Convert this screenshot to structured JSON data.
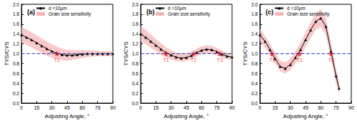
{
  "chart_data": [
    {
      "type": "line",
      "title": "(a)",
      "x_label": "Adjusting Angle, °",
      "y_label": "TYS/CYS",
      "xlim": [
        0,
        90
      ],
      "xticks": [
        0,
        15,
        30,
        45,
        60,
        75,
        90
      ],
      "ylim": [
        0,
        2
      ],
      "yticks": [
        {
          "value": 0,
          "label": "0.0"
        },
        {
          "value": 0.2,
          "label": "0.2"
        },
        {
          "value": 0.4,
          "label": "0.4"
        },
        {
          "value": 0.6,
          "label": "0.6"
        },
        {
          "value": 0.8,
          "label": "0.8"
        },
        {
          "value": 1,
          "label": "1.0"
        },
        {
          "value": 1.2,
          "label": "1.2"
        },
        {
          "value": 1.4,
          "label": "1.4"
        },
        {
          "value": 1.6,
          "label": "1.6"
        },
        {
          "value": 1.8,
          "label": "1.8"
        },
        {
          "value": 2,
          "label": "2.0"
        }
      ],
      "legend": "top",
      "series": [
        {
          "name": "d =10μm",
          "color": "#000000",
          "marker": "triangle",
          "x": [
            0,
            5,
            10,
            15,
            20,
            25,
            30,
            35,
            40,
            45,
            50,
            55,
            60,
            65,
            70,
            75,
            80,
            85,
            90
          ],
          "values": [
            1.38,
            1.33,
            1.28,
            1.22,
            1.16,
            1.1,
            1.05,
            1.01,
            0.98,
            0.97,
            0.97,
            0.98,
            0.99,
            1.0,
            1.0,
            1.0,
            1.0,
            1.0,
            1.0
          ]
        }
      ],
      "band": {
        "name": "Grain size sensitivity",
        "color": "#f7b3b3",
        "x": [
          0,
          5,
          10,
          15,
          20,
          25,
          30,
          35,
          40,
          45,
          50,
          55,
          60,
          65,
          70,
          75,
          80,
          85,
          90
        ],
        "lower": [
          1.22,
          1.18,
          1.13,
          1.07,
          1.01,
          0.96,
          0.92,
          0.89,
          0.87,
          0.86,
          0.87,
          0.89,
          0.91,
          0.93,
          0.94,
          0.95,
          0.95,
          0.95,
          0.95
        ],
        "upper": [
          1.55,
          1.49,
          1.43,
          1.37,
          1.31,
          1.25,
          1.19,
          1.14,
          1.1,
          1.08,
          1.07,
          1.07,
          1.07,
          1.07,
          1.06,
          1.06,
          1.05,
          1.05,
          1.05
        ]
      },
      "reference": {
        "value": 1,
        "color": "#1f3fbf",
        "line_style": "dashed"
      },
      "points": {
        "labels": [
          "T1"
        ],
        "x": [
          35
        ],
        "y": [
          1.0
        ],
        "color": "#ff0000",
        "marker": "star"
      }
    },
    {
      "type": "line",
      "title": "(b)",
      "x_label": "Adjusting Angle, °",
      "y_label": "TYS/CYS",
      "xlim": [
        0,
        90
      ],
      "xticks": [
        0,
        15,
        30,
        45,
        60,
        75,
        90
      ],
      "ylim": [
        0,
        2
      ],
      "yticks": [
        {
          "value": 0,
          "label": "0.0"
        },
        {
          "value": 0.2,
          "label": "0.2"
        },
        {
          "value": 0.4,
          "label": "0.4"
        },
        {
          "value": 0.6,
          "label": "0.6"
        },
        {
          "value": 0.8,
          "label": "0.8"
        },
        {
          "value": 1,
          "label": "1.0"
        },
        {
          "value": 1.2,
          "label": "1.2"
        },
        {
          "value": 1.4,
          "label": "1.4"
        },
        {
          "value": 1.6,
          "label": "1.6"
        },
        {
          "value": 1.8,
          "label": "1.8"
        },
        {
          "value": 2,
          "label": "2.0"
        }
      ],
      "legend": "top",
      "series": [
        {
          "name": "d =10μm",
          "color": "#000000",
          "marker": "triangle",
          "x": [
            0,
            5,
            10,
            15,
            20,
            25,
            30,
            35,
            40,
            45,
            50,
            55,
            60,
            65,
            70,
            75,
            80,
            85,
            90
          ],
          "values": [
            1.4,
            1.33,
            1.25,
            1.17,
            1.09,
            1.02,
            0.97,
            0.93,
            0.91,
            0.92,
            0.96,
            1.02,
            1.07,
            1.09,
            1.08,
            1.04,
            0.99,
            0.95,
            0.93
          ]
        }
      ],
      "band": {
        "name": "Grain size sensitivity",
        "color": "#f7b3b3",
        "x": [
          0,
          5,
          10,
          15,
          20,
          25,
          30,
          35,
          40,
          45,
          50,
          55,
          60,
          65,
          70,
          75,
          80,
          85,
          90
        ],
        "lower": [
          1.25,
          1.19,
          1.12,
          1.05,
          0.98,
          0.92,
          0.88,
          0.85,
          0.84,
          0.85,
          0.89,
          0.94,
          0.99,
          1.01,
          1.0,
          0.97,
          0.92,
          0.89,
          0.87
        ],
        "upper": [
          1.56,
          1.48,
          1.39,
          1.3,
          1.21,
          1.13,
          1.07,
          1.02,
          1.0,
          1.0,
          1.04,
          1.1,
          1.15,
          1.17,
          1.16,
          1.12,
          1.07,
          1.02,
          1.0
        ]
      },
      "reference": {
        "value": 1,
        "color": "#1f3fbf",
        "line_style": "dashed"
      },
      "points": {
        "labels": [
          "T1",
          "T2",
          "T3"
        ],
        "x": [
          25,
          52,
          78
        ],
        "y": [
          1.0,
          1.0,
          1.0
        ],
        "color": "#ff0000",
        "marker": "star"
      }
    },
    {
      "type": "line",
      "title": "(c)",
      "x_label": "Adjusting Angle, °",
      "y_label": "TYS/CYS",
      "xlim": [
        0,
        90
      ],
      "xticks": [
        0,
        15,
        30,
        45,
        60,
        75,
        90
      ],
      "ylim": [
        0,
        2
      ],
      "yticks": [
        {
          "value": 0,
          "label": "0.0"
        },
        {
          "value": 0.2,
          "label": "0.2"
        },
        {
          "value": 0.4,
          "label": "0.4"
        },
        {
          "value": 0.6,
          "label": "0.6"
        },
        {
          "value": 0.8,
          "label": "0.8"
        },
        {
          "value": 1,
          "label": "1.0"
        },
        {
          "value": 1.2,
          "label": "1.2"
        },
        {
          "value": 1.4,
          "label": "1.4"
        },
        {
          "value": 1.6,
          "label": "1.6"
        },
        {
          "value": 1.8,
          "label": "1.8"
        },
        {
          "value": 2,
          "label": "2.0"
        }
      ],
      "legend": "top",
      "series": [
        {
          "name": "d =10μm",
          "color": "#000000",
          "marker": "triangle",
          "x": [
            0,
            5,
            10,
            15,
            20,
            25,
            30,
            35,
            40,
            45,
            50,
            55,
            60,
            65,
            70,
            75,
            78
          ],
          "values": [
            1.38,
            1.25,
            1.08,
            0.9,
            0.74,
            0.7,
            0.78,
            0.92,
            1.08,
            1.28,
            1.48,
            1.65,
            1.72,
            1.55,
            1.05,
            0.55,
            0.3
          ]
        }
      ],
      "band": {
        "name": "Grain size sensitivity",
        "color": "#f7b3b3",
        "x": [
          0,
          5,
          10,
          15,
          20,
          25,
          30,
          35,
          40,
          45,
          50,
          55,
          60,
          65,
          70,
          75,
          78
        ],
        "lower": [
          1.26,
          1.13,
          0.97,
          0.8,
          0.64,
          0.6,
          0.67,
          0.8,
          0.95,
          1.13,
          1.32,
          1.48,
          1.54,
          1.37,
          0.88,
          0.4,
          0.16
        ],
        "upper": [
          1.5,
          1.37,
          1.2,
          1.02,
          0.86,
          0.82,
          0.9,
          1.05,
          1.22,
          1.43,
          1.64,
          1.82,
          1.9,
          1.73,
          1.22,
          0.7,
          0.44
        ]
      },
      "reference": {
        "value": 1,
        "color": "#1f3fbf",
        "line_style": "dashed"
      },
      "points": {
        "labels": [
          "T1",
          "T2",
          "T3"
        ],
        "x": [
          12,
          39,
          70
        ],
        "y": [
          1.0,
          1.0,
          1.0
        ],
        "color": "#ff0000",
        "marker": "star"
      }
    }
  ]
}
